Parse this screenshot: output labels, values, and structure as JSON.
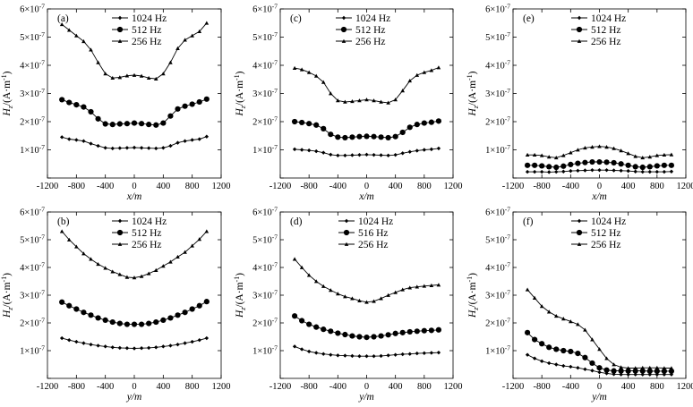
{
  "chart_data": [
    {
      "id": "a",
      "type": "line",
      "panel_label": "(a)",
      "xlabel": "x/m",
      "ylabel_var": "H",
      "ylabel_sub": "z",
      "ylabel_unit": "/(A·m",
      "ylabel_sup": "-1",
      "ylabel_close": ")",
      "xlim": [
        -1200,
        1200
      ],
      "ylim": [
        0,
        6e-07
      ],
      "xticks": [
        "-1200",
        "-800",
        "-400",
        "0",
        "400",
        "800",
        "1200"
      ],
      "yticks": [
        "1×10",
        "2×10",
        "3×10",
        "4×10",
        "5×10",
        "6×10"
      ],
      "ytick_exp": "-7",
      "x": [
        -1000,
        -900,
        -800,
        -700,
        -600,
        -500,
        -400,
        -300,
        -200,
        -100,
        0,
        100,
        200,
        300,
        400,
        500,
        600,
        700,
        800,
        900,
        1000
      ],
      "series": [
        {
          "name": "1024 Hz",
          "marker": "diamond",
          "values": [
            1.45e-07,
            1.38e-07,
            1.35e-07,
            1.31e-07,
            1.22e-07,
            1.14e-07,
            1.07e-07,
            1.05e-07,
            1.06e-07,
            1.07e-07,
            1.08e-07,
            1.07e-07,
            1.06e-07,
            1.05e-07,
            1.07e-07,
            1.14e-07,
            1.25e-07,
            1.31e-07,
            1.35e-07,
            1.38e-07,
            1.47e-07
          ]
        },
        {
          "name": "512 Hz",
          "marker": "circle",
          "values": [
            2.78e-07,
            2.68e-07,
            2.6e-07,
            2.52e-07,
            2.35e-07,
            2.1e-07,
            1.92e-07,
            1.9e-07,
            1.92e-07,
            1.93e-07,
            1.95e-07,
            1.93e-07,
            1.9e-07,
            1.88e-07,
            1.95e-07,
            2.2e-07,
            2.45e-07,
            2.55e-07,
            2.62e-07,
            2.7e-07,
            2.8e-07
          ]
        },
        {
          "name": "256 Hz",
          "marker": "triangle",
          "values": [
            5.45e-07,
            5.25e-07,
            5.05e-07,
            4.85e-07,
            4.55e-07,
            4.1e-07,
            3.7e-07,
            3.55e-07,
            3.57e-07,
            3.63e-07,
            3.65e-07,
            3.62e-07,
            3.55e-07,
            3.52e-07,
            3.7e-07,
            4.1e-07,
            4.6e-07,
            4.9e-07,
            5.05e-07,
            5.2e-07,
            5.5e-07
          ]
        }
      ]
    },
    {
      "id": "c",
      "type": "line",
      "panel_label": "(c)",
      "xlabel": "x/m",
      "ylabel_var": "H",
      "ylabel_sub": "z",
      "ylabel_unit": "/(A·m",
      "ylabel_sup": "-1",
      "ylabel_close": ")",
      "xlim": [
        -1200,
        1200
      ],
      "ylim": [
        0,
        6e-07
      ],
      "xticks": [
        "-1200",
        "-800",
        "-400",
        "0",
        "400",
        "800",
        "1200"
      ],
      "yticks": [
        "1×10",
        "2×10",
        "3×10",
        "4×10",
        "5×10",
        "6×10"
      ],
      "ytick_exp": "-7",
      "x": [
        -1000,
        -900,
        -800,
        -700,
        -600,
        -500,
        -400,
        -300,
        -200,
        -100,
        0,
        100,
        200,
        300,
        400,
        500,
        600,
        700,
        800,
        900,
        1000
      ],
      "series": [
        {
          "name": "1024 Hz",
          "marker": "diamond",
          "values": [
            1.02e-07,
            1e-07,
            9.8e-08,
            9.5e-08,
            9e-08,
            8.3e-08,
            8e-08,
            8e-08,
            8.1e-08,
            8.2e-08,
            8.3e-08,
            8.2e-08,
            8.1e-08,
            8e-08,
            8.2e-08,
            8.8e-08,
            9.3e-08,
            9.7e-08,
            1e-07,
            1.02e-07,
            1.05e-07
          ]
        },
        {
          "name": "512 Hz",
          "marker": "circle",
          "values": [
            2e-07,
            1.97e-07,
            1.93e-07,
            1.88e-07,
            1.75e-07,
            1.55e-07,
            1.45e-07,
            1.43e-07,
            1.45e-07,
            1.47e-07,
            1.48e-07,
            1.47e-07,
            1.45e-07,
            1.43e-07,
            1.47e-07,
            1.62e-07,
            1.8e-07,
            1.9e-07,
            1.95e-07,
            1.98e-07,
            2.02e-07
          ]
        },
        {
          "name": "256 Hz",
          "marker": "triangle",
          "values": [
            3.9e-07,
            3.85e-07,
            3.75e-07,
            3.62e-07,
            3.4e-07,
            3e-07,
            2.75e-07,
            2.7e-07,
            2.72e-07,
            2.75e-07,
            2.78e-07,
            2.75e-07,
            2.7e-07,
            2.67e-07,
            2.78e-07,
            3.1e-07,
            3.45e-07,
            3.65e-07,
            3.75e-07,
            3.82e-07,
            3.92e-07
          ]
        }
      ]
    },
    {
      "id": "e",
      "type": "line",
      "panel_label": "(e)",
      "xlabel": "x/m",
      "ylabel_var": "H",
      "ylabel_sub": "z",
      "ylabel_unit": "/(A·m",
      "ylabel_sup": "-1",
      "ylabel_close": ")",
      "xlim": [
        -1200,
        1200
      ],
      "ylim": [
        0,
        6e-07
      ],
      "xticks": [
        "-1200",
        "-800",
        "-400",
        "0",
        "400",
        "800",
        "1200"
      ],
      "yticks": [
        "1×10",
        "2×10",
        "3×10",
        "4×10",
        "5×10",
        "6×10"
      ],
      "ytick_exp": "-7",
      "x": [
        -1000,
        -900,
        -800,
        -700,
        -600,
        -500,
        -400,
        -300,
        -200,
        -100,
        0,
        100,
        200,
        300,
        400,
        500,
        600,
        700,
        800,
        900,
        1000
      ],
      "series": [
        {
          "name": "1024 Hz",
          "marker": "diamond",
          "values": [
            2.2e-08,
            2.2e-08,
            2.2e-08,
            2.1e-08,
            2.2e-08,
            2.3e-08,
            2.5e-08,
            2.6e-08,
            2.7e-08,
            2.8e-08,
            2.8e-08,
            2.8e-08,
            2.7e-08,
            2.6e-08,
            2.5e-08,
            2.3e-08,
            2.2e-08,
            2.2e-08,
            2.2e-08,
            2.2e-08,
            2.3e-08
          ]
        },
        {
          "name": "512 Hz",
          "marker": "circle",
          "values": [
            4.5e-08,
            4.5e-08,
            4.3e-08,
            4e-08,
            3.8e-08,
            4.2e-08,
            4.8e-08,
            5.2e-08,
            5.5e-08,
            5.7e-08,
            5.7e-08,
            5.6e-08,
            5.4e-08,
            5e-08,
            4.5e-08,
            4e-08,
            3.8e-08,
            4e-08,
            4.3e-08,
            4.5e-08,
            4.5e-08
          ]
        },
        {
          "name": "256 Hz",
          "marker": "triangle",
          "values": [
            8.2e-08,
            8.2e-08,
            8e-08,
            7.5e-08,
            7.2e-08,
            8e-08,
            9e-08,
            1e-07,
            1.07e-07,
            1.1e-07,
            1.12e-07,
            1.1e-07,
            1.05e-07,
            9.7e-08,
            8.7e-08,
            7.7e-08,
            7.2e-08,
            7.5e-08,
            8e-08,
            8.2e-08,
            8.3e-08
          ]
        }
      ]
    },
    {
      "id": "b",
      "type": "line",
      "panel_label": "(b)",
      "xlabel": "y/m",
      "ylabel_var": "H",
      "ylabel_sub": "z",
      "ylabel_unit": "/(A·m",
      "ylabel_sup": "-1",
      "ylabel_close": ")",
      "xlim": [
        -1200,
        1200
      ],
      "ylim": [
        0,
        6e-07
      ],
      "xticks": [
        "-1200",
        "-800",
        "-400",
        "0",
        "400",
        "800",
        "1200"
      ],
      "yticks": [
        "1×10",
        "2×10",
        "3×10",
        "4×10",
        "5×10",
        "6×10"
      ],
      "ytick_exp": "-7",
      "x": [
        -1000,
        -900,
        -800,
        -700,
        -600,
        -500,
        -400,
        -300,
        -200,
        -100,
        0,
        100,
        200,
        300,
        400,
        500,
        600,
        700,
        800,
        900,
        1000
      ],
      "series": [
        {
          "name": "1024 Hz",
          "marker": "diamond",
          "values": [
            1.45e-07,
            1.38e-07,
            1.32e-07,
            1.27e-07,
            1.22e-07,
            1.18e-07,
            1.15e-07,
            1.12e-07,
            1.1e-07,
            1.09e-07,
            1.08e-07,
            1.09e-07,
            1.1e-07,
            1.12e-07,
            1.15e-07,
            1.18e-07,
            1.22e-07,
            1.27e-07,
            1.32e-07,
            1.38e-07,
            1.45e-07
          ]
        },
        {
          "name": "512 Hz",
          "marker": "circle",
          "values": [
            2.75e-07,
            2.62e-07,
            2.5e-07,
            2.38e-07,
            2.28e-07,
            2.18e-07,
            2.1e-07,
            2.03e-07,
            1.98e-07,
            1.95e-07,
            1.95e-07,
            1.95e-07,
            1.98e-07,
            2.03e-07,
            2.1e-07,
            2.18e-07,
            2.28e-07,
            2.38e-07,
            2.5e-07,
            2.62e-07,
            2.77e-07
          ]
        },
        {
          "name": "256 Hz",
          "marker": "triangle",
          "values": [
            5.3e-07,
            5e-07,
            4.75e-07,
            4.5e-07,
            4.3e-07,
            4.12e-07,
            3.98e-07,
            3.85e-07,
            3.75e-07,
            3.65e-07,
            3.63e-07,
            3.68e-07,
            3.78e-07,
            3.9e-07,
            4.05e-07,
            4.2e-07,
            4.38e-07,
            4.55e-07,
            4.78e-07,
            5.02e-07,
            5.3e-07
          ]
        }
      ]
    },
    {
      "id": "d",
      "type": "line",
      "panel_label": "(d)",
      "xlabel": "y/m",
      "ylabel_var": "H",
      "ylabel_sub": "z",
      "ylabel_unit": "/(A·m",
      "ylabel_sup": "-1",
      "ylabel_close": ")",
      "xlim": [
        -1200,
        1200
      ],
      "ylim": [
        0,
        6e-07
      ],
      "xticks": [
        "-1200",
        "-800",
        "-400",
        "0",
        "400",
        "800",
        "1200"
      ],
      "yticks": [
        "1×10",
        "2×10",
        "3×10",
        "4×10",
        "5×10",
        "6×10"
      ],
      "ytick_exp": "-7",
      "x": [
        -1000,
        -900,
        -800,
        -700,
        -600,
        -500,
        -400,
        -300,
        -200,
        -100,
        0,
        100,
        200,
        300,
        400,
        500,
        600,
        700,
        800,
        900,
        1000
      ],
      "series": [
        {
          "name": "1024 Hz",
          "marker": "diamond",
          "values": [
            1.15e-07,
            1.05e-07,
            9.7e-08,
            9.2e-08,
            8.8e-08,
            8.5e-08,
            8.3e-08,
            8.2e-08,
            8.1e-08,
            8e-08,
            8e-08,
            8e-08,
            8.1e-08,
            8.3e-08,
            8.5e-08,
            8.7e-08,
            8.8e-08,
            9e-08,
            9.1e-08,
            9.2e-08,
            9.3e-08
          ]
        },
        {
          "name": "516 Hz",
          "marker": "circle",
          "values": [
            2.25e-07,
            2.08e-07,
            1.95e-07,
            1.85e-07,
            1.77e-07,
            1.7e-07,
            1.63e-07,
            1.58e-07,
            1.53e-07,
            1.5e-07,
            1.48e-07,
            1.5e-07,
            1.53e-07,
            1.57e-07,
            1.62e-07,
            1.65e-07,
            1.68e-07,
            1.7e-07,
            1.72e-07,
            1.73e-07,
            1.75e-07
          ]
        },
        {
          "name": "256 Hz",
          "marker": "triangle",
          "values": [
            4.3e-07,
            4e-07,
            3.72e-07,
            3.5e-07,
            3.32e-07,
            3.18e-07,
            3.05e-07,
            2.95e-07,
            2.88e-07,
            2.8e-07,
            2.75e-07,
            2.78e-07,
            2.88e-07,
            3e-07,
            3.1e-07,
            3.2e-07,
            3.27e-07,
            3.3e-07,
            3.33e-07,
            3.35e-07,
            3.37e-07
          ]
        }
      ]
    },
    {
      "id": "f",
      "type": "line",
      "panel_label": "(f)",
      "xlabel": "y/m",
      "ylabel_var": "H",
      "ylabel_sub": "z",
      "ylabel_unit": "/(A·m",
      "ylabel_sup": "-1",
      "ylabel_close": ")",
      "xlim": [
        -1200,
        1200
      ],
      "ylim": [
        0,
        6e-07
      ],
      "xticks": [
        "-1200",
        "-800",
        "-400",
        "0",
        "400",
        "800",
        "1200"
      ],
      "yticks": [
        "1×10",
        "2×10",
        "3×10",
        "4×10",
        "5×10",
        "6×10"
      ],
      "ytick_exp": "-7",
      "x": [
        -1000,
        -900,
        -800,
        -700,
        -600,
        -500,
        -400,
        -300,
        -200,
        -100,
        0,
        100,
        200,
        300,
        400,
        500,
        600,
        700,
        800,
        900,
        1000
      ],
      "series": [
        {
          "name": "1024 Hz",
          "marker": "diamond",
          "values": [
            8.5e-08,
            7.2e-08,
            6.2e-08,
            5.5e-08,
            5e-08,
            4.5e-08,
            4.2e-08,
            3.8e-08,
            3.3e-08,
            2.8e-08,
            2.2e-08,
            1.8e-08,
            1.5e-08,
            1.4e-08,
            1.4e-08,
            1.4e-08,
            1.4e-08,
            1.4e-08,
            1.4e-08,
            1.4e-08,
            1.4e-08
          ]
        },
        {
          "name": "512 Hz",
          "marker": "circle",
          "values": [
            1.65e-07,
            1.4e-07,
            1.25e-07,
            1.12e-07,
            1.05e-07,
            1e-07,
            9.7e-08,
            9e-08,
            7.5e-08,
            5.5e-08,
            3.8e-08,
            3e-08,
            2.7e-08,
            2.7e-08,
            2.7e-08,
            2.7e-08,
            2.7e-08,
            2.6e-08,
            2.6e-08,
            2.6e-08,
            2.6e-08
          ]
        },
        {
          "name": "256 Hz",
          "marker": "triangle",
          "values": [
            3.2e-07,
            2.9e-07,
            2.6e-07,
            2.4e-07,
            2.25e-07,
            2.15e-07,
            2.05e-07,
            1.95e-07,
            1.75e-07,
            1.4e-07,
            1.05e-07,
            7.2e-08,
            5e-08,
            4e-08,
            3.7e-08,
            3.7e-08,
            3.8e-08,
            3.8e-08,
            3.8e-08,
            3.7e-08,
            3.7e-08
          ]
        }
      ]
    }
  ]
}
